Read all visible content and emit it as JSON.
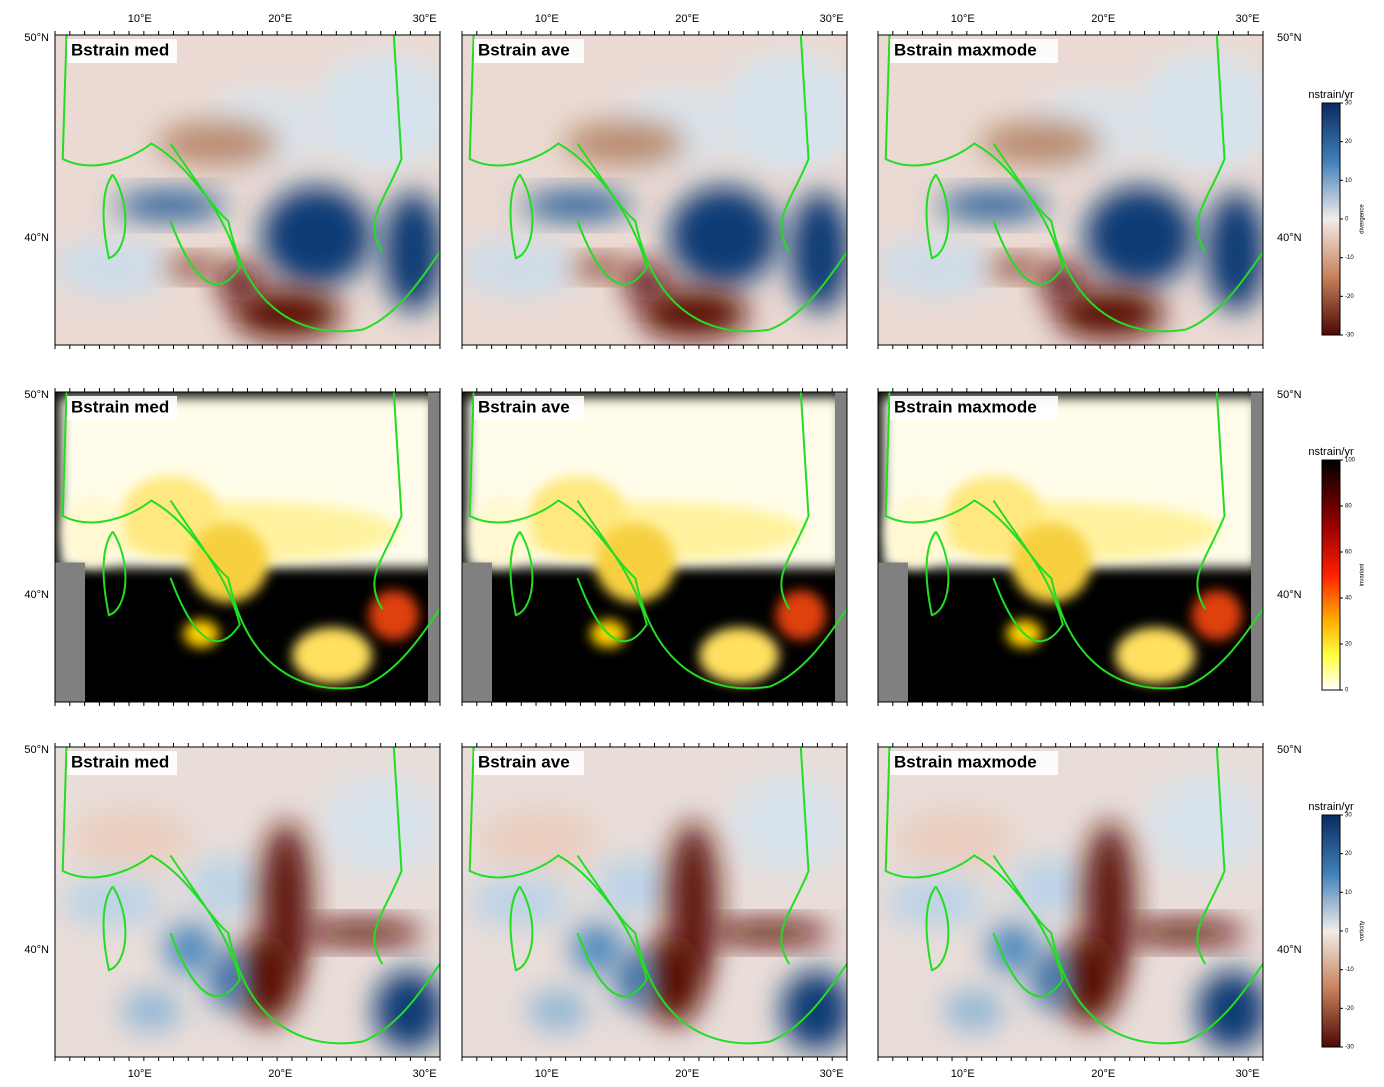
{
  "longitude_labels": [
    "10°E",
    "20°E",
    "30°E"
  ],
  "latitude_labels": [
    "50°N",
    "40°N"
  ],
  "rows": [
    {
      "panels": [
        "Bstrain med",
        "Bstrain ave",
        "Bstrain maxmode"
      ],
      "colorbar": {
        "unit": "nstrain/yr",
        "label": "divergence",
        "ticks": [
          30,
          20,
          10,
          0,
          -10,
          -20,
          -30
        ]
      }
    },
    {
      "panels": [
        "Bstrain med",
        "Bstrain ave",
        "Bstrain maxmode"
      ],
      "colorbar": {
        "unit": "nstrain/yr",
        "label": "invariant",
        "ticks": [
          100,
          80,
          60,
          40,
          20,
          0
        ]
      }
    },
    {
      "panels": [
        "Bstrain med",
        "Bstrain ave",
        "Bstrain maxmode"
      ],
      "colorbar": {
        "unit": "nstrain/yr",
        "label": "vorticity",
        "ticks": [
          30,
          20,
          10,
          0,
          -10,
          -20,
          -30
        ]
      }
    }
  ]
}
